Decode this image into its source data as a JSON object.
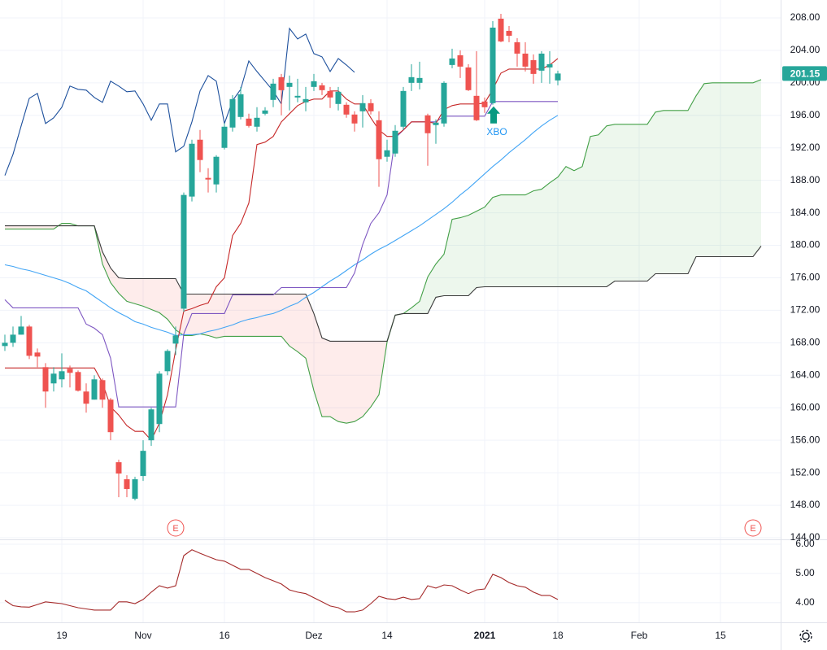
{
  "chart_data": {
    "type": "candlestick",
    "categories": [
      null,
      null,
      null,
      null,
      null,
      null,
      null,
      "19",
      null,
      null,
      null,
      null,
      null,
      null,
      null,
      null,
      null,
      "Nov",
      null,
      null,
      null,
      null,
      null,
      null,
      null,
      null,
      null,
      "16",
      null,
      null,
      null,
      null,
      null,
      null,
      null,
      null,
      null,
      null,
      "Dez",
      null,
      null,
      null,
      null,
      null,
      null,
      null,
      null,
      "14",
      null,
      null,
      null,
      null,
      null,
      null,
      null,
      null,
      null,
      null,
      null,
      "2021",
      null,
      null,
      null,
      null,
      null,
      null,
      null,
      null,
      "18",
      null,
      null,
      null,
      null,
      null,
      null,
      null,
      null,
      null,
      "Feb",
      null,
      null,
      null,
      null,
      null,
      null,
      null,
      null,
      null,
      "15",
      null,
      null,
      null,
      null,
      null
    ],
    "candles": {
      "up_color": "#26a69a",
      "down_color": "#ef5350",
      "open": [
        167.6,
        168,
        169,
        170,
        166.8,
        165,
        163,
        163.5,
        164.8,
        164.4,
        162,
        161,
        163.4,
        161,
        153.3,
        151.2,
        148.8,
        151.6,
        156,
        158,
        164.5,
        167.9,
        172.2,
        186,
        193,
        188.3,
        187.5,
        192,
        194.5,
        195.8,
        195.6,
        194.6,
        196.2,
        197.9,
        200.7,
        199.5,
        198.2,
        197.6,
        199.5,
        199.7,
        199,
        197.4,
        197.3,
        196.1,
        196.5,
        197.5,
        195.4,
        190.9,
        191.3,
        194.6,
        200,
        200,
        196,
        194.8,
        195,
        202.2,
        203.4,
        201.9,
        198.4,
        197.7,
        197.5,
        207.9,
        206.4,
        205,
        203.6,
        202.8,
        201.5,
        201.9,
        200.3,
        null,
        null,
        null,
        null,
        null,
        null,
        null,
        null,
        null,
        null,
        null,
        null,
        null,
        null,
        null,
        null,
        null,
        null,
        null,
        null,
        null,
        null,
        null,
        null,
        null
      ],
      "high": [
        169,
        170,
        171.3,
        170.2,
        167.3,
        165.5,
        165,
        166.7,
        165.2,
        164.6,
        163,
        164,
        163.6,
        161.2,
        153.6,
        151.7,
        151.5,
        156,
        160,
        164.5,
        167.2,
        170,
        186.5,
        193,
        194.2,
        189.5,
        191.1,
        195,
        198.5,
        199.5,
        196.2,
        197,
        197,
        200.5,
        201.1,
        200.9,
        200.5,
        199.5,
        201.1,
        200,
        199.5,
        199.5,
        197.6,
        196.5,
        198.5,
        198,
        196.5,
        193,
        194.8,
        199.5,
        202.3,
        202.6,
        196.2,
        195.5,
        200.2,
        204.2,
        204,
        202.3,
        203.9,
        198.2,
        207.6,
        208.5,
        207,
        205.5,
        205,
        203.5,
        203.9,
        203.9,
        201.5,
        null,
        null,
        null,
        null,
        null,
        null,
        null,
        null,
        null,
        null,
        null,
        null,
        null,
        null,
        null,
        null,
        null,
        null,
        null,
        null,
        null,
        null,
        null,
        null,
        null
      ],
      "low": [
        167,
        167.5,
        169,
        166,
        165,
        160,
        162,
        162.5,
        162.5,
        162,
        159.4,
        161,
        160,
        156,
        149,
        149,
        148.6,
        151,
        155.3,
        157,
        164,
        166.5,
        171.8,
        185.4,
        189,
        186.5,
        186.5,
        191.8,
        194,
        195.5,
        194.5,
        194,
        196,
        197,
        196,
        196.6,
        197.6,
        196.5,
        199,
        198.5,
        196.9,
        196.6,
        195.7,
        194,
        194.5,
        196.1,
        187.2,
        190.3,
        190.9,
        194.2,
        199,
        199.2,
        189.8,
        192.5,
        194.6,
        201.8,
        200.6,
        199,
        195.3,
        196.3,
        197.3,
        205,
        205,
        202,
        201.4,
        199.9,
        200,
        199.9,
        199.7,
        null,
        null,
        null,
        null,
        null,
        null,
        null,
        null,
        null,
        null,
        null,
        null,
        null,
        null,
        null,
        null,
        null,
        null,
        null,
        null,
        null,
        null,
        null,
        null,
        null
      ],
      "close": [
        168,
        169,
        170,
        166.4,
        166.3,
        162,
        164.2,
        164.5,
        164.3,
        162.1,
        160.5,
        163.5,
        161,
        157,
        151.9,
        150,
        151.2,
        154.7,
        159.8,
        164.2,
        167,
        168.9,
        186.2,
        192.5,
        190.5,
        188.1,
        190.9,
        194.6,
        198,
        198.6,
        194.7,
        195.7,
        196.6,
        199.9,
        199.1,
        200,
        198.4,
        198,
        200.2,
        199.1,
        198.2,
        198.9,
        196.1,
        195,
        197.5,
        196.5,
        190.6,
        191.7,
        194.1,
        199,
        200.7,
        200.6,
        193.8,
        195.1,
        200,
        203,
        202,
        199.1,
        195.4,
        197,
        206.8,
        205.1,
        205.8,
        203.6,
        202,
        201.1,
        203.6,
        202.3,
        201.15,
        null,
        null,
        null,
        null,
        null,
        null,
        null,
        null,
        null,
        null,
        null,
        null,
        null,
        null,
        null,
        null,
        null,
        null,
        null,
        null,
        null,
        null,
        null,
        null,
        null
      ]
    },
    "cloud": {
      "up_fill": "rgba(76,175,80,0.10)",
      "down_fill": "rgba(244,67,54,0.10)",
      "span_a": {
        "color": "#43a047",
        "values": [
          182,
          182,
          182,
          182,
          182,
          182,
          182,
          182.7,
          182.7,
          182.4,
          182.4,
          182.4,
          177.7,
          175.4,
          174.1,
          173.1,
          172.8,
          172.5,
          172.1,
          171.7,
          170.9,
          169.6,
          168.9,
          168.9,
          169.1,
          168.9,
          168.6,
          168.8,
          168.8,
          168.8,
          168.8,
          168.8,
          168.8,
          168.8,
          168.8,
          167.6,
          166.9,
          166.1,
          162.1,
          158.9,
          158.9,
          158.3,
          158.1,
          158.3,
          158.9,
          160.1,
          161.6,
          168.1,
          171.4,
          171.6,
          172.3,
          173.1,
          176.1,
          177.7,
          178.9,
          183.2,
          183.4,
          183.7,
          184.2,
          184.7,
          185.9,
          186.2,
          186.2,
          186.2,
          186.2,
          186.7,
          186.9,
          187.7,
          188.4,
          189.7,
          189.2,
          189.7,
          193.4,
          193.6,
          194.7,
          194.9,
          194.9,
          194.9,
          194.9,
          194.9,
          196.4,
          196.6,
          196.6,
          196.6,
          196.6,
          198.4,
          199.9,
          200,
          200,
          200,
          200,
          200,
          200,
          200.4
        ]
      },
      "span_b": {
        "color": "#3a3a3a",
        "values": [
          182.4,
          182.4,
          182.4,
          182.4,
          182.4,
          182.4,
          182.4,
          182.4,
          182.4,
          182.4,
          182.4,
          182.4,
          179.2,
          177.2,
          176,
          175.9,
          175.9,
          175.9,
          175.9,
          175.9,
          175.9,
          175.9,
          174,
          174,
          174,
          174,
          174,
          174,
          174,
          174,
          174,
          174,
          174,
          174,
          174,
          174,
          174,
          174,
          171.6,
          168.6,
          168.2,
          168.2,
          168.2,
          168.2,
          168.2,
          168.2,
          168.2,
          168.2,
          171.4,
          171.6,
          171.6,
          171.6,
          171.6,
          173.6,
          173.8,
          173.8,
          173.8,
          173.8,
          174.8,
          174.9,
          174.9,
          174.9,
          174.9,
          174.9,
          174.9,
          174.9,
          174.9,
          174.9,
          174.9,
          174.9,
          174.9,
          174.9,
          174.9,
          174.9,
          174.9,
          175.6,
          175.6,
          175.6,
          175.6,
          175.6,
          176.5,
          176.5,
          176.5,
          176.5,
          176.5,
          178.6,
          178.6,
          178.6,
          178.6,
          178.6,
          178.6,
          178.6,
          178.6,
          179.9
        ]
      }
    },
    "lines": [
      {
        "color": "#42a5f5",
        "values": [
          177.6,
          177.4,
          177.1,
          176.9,
          176.6,
          176.3,
          176,
          175.7,
          175.3,
          174.8,
          174.4,
          173.7,
          173,
          172.3,
          171.7,
          171.2,
          170.6,
          170.3,
          169.9,
          169.6,
          169.3,
          168.9,
          169,
          169,
          169.1,
          169.4,
          169.6,
          169.9,
          170.2,
          170.6,
          170.9,
          171.1,
          171.4,
          171.6,
          172,
          172.5,
          172.9,
          173.6,
          174.2,
          174.9,
          175.6,
          176.2,
          176.9,
          177.6,
          178.2,
          178.9,
          179.5,
          180,
          180.6,
          181.2,
          181.8,
          182.4,
          183.1,
          183.8,
          184.5,
          185.3,
          186.2,
          187,
          187.9,
          188.8,
          189.7,
          190.5,
          191.4,
          192.2,
          193,
          193.9,
          194.7,
          195.4,
          196,
          null,
          null,
          null,
          null,
          null,
          null,
          null,
          null,
          null,
          null,
          null,
          null,
          null,
          null,
          null,
          null,
          null,
          null,
          null,
          null,
          null,
          null,
          null,
          null,
          null
        ]
      },
      {
        "color": "#7e57c2",
        "values": [
          173.3,
          172.3,
          172.3,
          172.3,
          172.3,
          172.3,
          172.3,
          172.3,
          172.3,
          172.3,
          170.3,
          169.8,
          169,
          166.1,
          160.1,
          160.1,
          160.1,
          160.1,
          160.1,
          160.1,
          160.1,
          160.1,
          169.1,
          171.6,
          171.6,
          171.6,
          171.6,
          171.6,
          173.9,
          173.9,
          173.9,
          173.9,
          173.9,
          173.9,
          174.8,
          174.8,
          174.8,
          174.8,
          174.8,
          174.8,
          174.8,
          174.8,
          174.8,
          176.6,
          180.1,
          182.7,
          184,
          186.2,
          193.2,
          194.2,
          195.2,
          195.2,
          195.2,
          195.2,
          195.9,
          195.9,
          195.9,
          195.9,
          195.9,
          195.9,
          197.7,
          197.7,
          197.7,
          197.7,
          197.7,
          197.7,
          197.7,
          197.7,
          197.7,
          null,
          null,
          null,
          null,
          null,
          null,
          null,
          null,
          null,
          null,
          null,
          null,
          null,
          null,
          null,
          null,
          null,
          null,
          null,
          null,
          null,
          null,
          null,
          null,
          null
        ]
      },
      {
        "color": "#c62828",
        "values": [
          164.9,
          164.9,
          164.9,
          164.9,
          164.9,
          164.9,
          164.9,
          164.9,
          164.9,
          164.9,
          164.9,
          164.9,
          163.1,
          160.1,
          159.1,
          157.8,
          157.1,
          157.1,
          156,
          158.1,
          161.6,
          167.1,
          171.9,
          172.2,
          172.6,
          172.9,
          174.9,
          176,
          181.2,
          182.7,
          185.2,
          192.4,
          192.7,
          193.4,
          195.2,
          196.2,
          197.2,
          197.7,
          198,
          198,
          199,
          199,
          198,
          197.4,
          197.4,
          195.7,
          194.2,
          193.4,
          193.4,
          194.2,
          195.2,
          195.2,
          195.2,
          195,
          196.7,
          197.2,
          197.4,
          197.4,
          197.4,
          197.5,
          199.2,
          201.2,
          201.7,
          201.7,
          201.7,
          201.7,
          201.7,
          202.2,
          203,
          null,
          null,
          null,
          null,
          null,
          null,
          null,
          null,
          null,
          null,
          null,
          null,
          null,
          null,
          null,
          null,
          null,
          null,
          null,
          null,
          null,
          null,
          null,
          null,
          null
        ]
      },
      {
        "color": "#1c4f9c",
        "values": [
          188.6,
          191.2,
          194.7,
          198.1,
          198.7,
          195,
          195.7,
          197,
          199.6,
          199.2,
          199.1,
          198.2,
          197.6,
          200.2,
          199.6,
          198.9,
          199,
          197.4,
          195.4,
          197.4,
          197.4,
          191.5,
          192.2,
          195.2,
          199,
          200.9,
          200.2,
          195,
          197.8,
          199.2,
          202.7,
          201.4,
          200.2,
          199,
          197.4,
          206.7,
          205.4,
          206,
          203.6,
          203.2,
          201.4,
          203,
          202.2,
          201.3,
          null,
          null,
          null,
          null,
          null,
          null,
          null,
          null,
          null,
          null,
          null,
          null,
          null,
          null,
          null,
          null,
          null,
          null,
          null,
          null,
          null,
          null,
          null,
          null,
          null,
          null,
          null,
          null,
          null,
          null,
          null,
          null,
          null,
          null,
          null,
          null,
          null,
          null,
          null,
          null,
          null,
          null,
          null,
          null,
          null,
          null,
          null,
          null,
          null,
          null
        ]
      }
    ],
    "ylim": [
      143.8,
      210.2
    ],
    "yticks": [
      {
        "value": 144,
        "label": "144.00"
      },
      {
        "value": 148,
        "label": "148.00"
      },
      {
        "value": 152,
        "label": "152.00"
      },
      {
        "value": 156,
        "label": "156.00"
      },
      {
        "value": 160,
        "label": "160.00"
      },
      {
        "value": 164,
        "label": "164.00"
      },
      {
        "value": 168,
        "label": "168.00"
      },
      {
        "value": 172,
        "label": "172.00"
      },
      {
        "value": 176,
        "label": "176.00"
      },
      {
        "value": 180,
        "label": "180.00"
      },
      {
        "value": 184,
        "label": "184.00"
      },
      {
        "value": 188,
        "label": "188.00"
      },
      {
        "value": 192,
        "label": "192.00"
      },
      {
        "value": 196,
        "label": "196.00"
      },
      {
        "value": 200,
        "label": "200.00"
      },
      {
        "value": 204,
        "label": "204.00"
      },
      {
        "value": 208,
        "label": "208.00"
      }
    ],
    "grid": true,
    "annotations": [
      {
        "text": "XBO",
        "color": "#2196f3",
        "marker_color": "#089981"
      }
    ],
    "events": [
      "E",
      "E"
    ],
    "lower": {
      "type": "line",
      "color": "#a52a2a",
      "values": [
        4.08,
        3.9,
        3.86,
        3.85,
        3.94,
        4.03,
        4,
        3.97,
        3.9,
        3.83,
        3.79,
        3.75,
        3.75,
        3.75,
        4.03,
        4.03,
        3.97,
        4.11,
        4.36,
        4.58,
        4.5,
        4.58,
        5.61,
        5.81,
        5.69,
        5.58,
        5.47,
        5.42,
        5.28,
        5.14,
        5.14,
        5,
        4.86,
        4.75,
        4.64,
        4.44,
        4.36,
        4.31,
        4.17,
        4.03,
        3.89,
        3.83,
        3.69,
        3.69,
        3.75,
        3.97,
        4.22,
        4.14,
        4.11,
        4.19,
        4.11,
        4.14,
        4.58,
        4.5,
        4.61,
        4.58,
        4.44,
        4.31,
        4.44,
        4.47,
        4.97,
        4.86,
        4.69,
        4.58,
        4.53,
        4.36,
        4.25,
        4.25,
        4.11,
        null,
        null,
        null,
        null,
        null,
        null,
        null,
        null,
        null,
        null,
        null,
        null,
        null,
        null,
        null,
        null,
        null,
        null,
        null,
        null,
        null,
        null,
        null,
        null,
        null
      ],
      "ylim": [
        3.33,
        6.11
      ],
      "yticks": [
        {
          "value": 4,
          "label": "4.00"
        },
        {
          "value": 5,
          "label": "5.00"
        },
        {
          "value": 6,
          "label": "6.00"
        }
      ]
    }
  }
}
